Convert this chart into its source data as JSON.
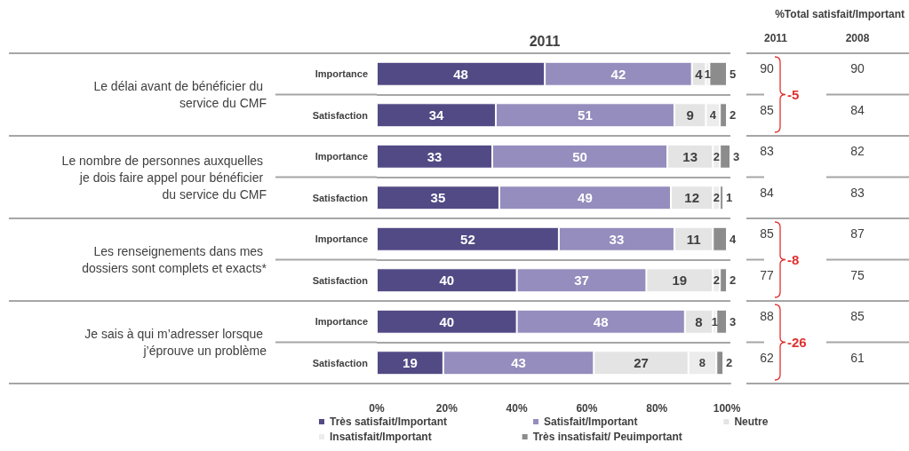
{
  "chart_data": {
    "type": "bar",
    "orientation": "horizontal",
    "stacked": true,
    "title": "2011",
    "categories": [
      "Importance",
      "Satisfaction",
      "Importance",
      "Satisfaction",
      "Importance",
      "Satisfaction",
      "Importance",
      "Satisfaction"
    ],
    "series": [
      {
        "name": "Très satisfait/Important",
        "color": "#524a85",
        "values": [
          48,
          34,
          33,
          35,
          52,
          40,
          40,
          19
        ]
      },
      {
        "name": "Satisfait/Important",
        "color": "#948dbd",
        "values": [
          42,
          51,
          50,
          49,
          33,
          37,
          48,
          43
        ]
      },
      {
        "name": "Neutre",
        "color": "#e4e4e4",
        "values": [
          4,
          9,
          13,
          12,
          11,
          19,
          8,
          27
        ]
      },
      {
        "name": "Insatisfait/Important",
        "color": "#ececec",
        "values": [
          1,
          4,
          2,
          2,
          null,
          2,
          1,
          8
        ]
      },
      {
        "name": "Très insatisfait/ Peuimportant",
        "color": "#8c8c8c",
        "values": [
          5,
          2,
          3,
          1,
          4,
          2,
          3,
          2
        ]
      }
    ],
    "xlim": [
      0,
      101
    ],
    "xticks": [
      {
        "value": 0,
        "label": "0%"
      },
      {
        "value": 20,
        "label": "20%"
      },
      {
        "value": 40,
        "label": "40%"
      },
      {
        "value": 60,
        "label": "60%"
      },
      {
        "value": 80,
        "label": "80%"
      },
      {
        "value": 100,
        "label": "100%"
      }
    ],
    "data_labels": true,
    "legend": "bottom",
    "grid": "y",
    "annotations": [
      "Le délai avant de bénéficier du service du CMF",
      "Le nombre de personnes auxquelles je dois faire appel pour bénéficier du service du CMF",
      "Les renseignements dans mes dossiers sont complets et exacts*",
      "Je sais à qui m’adresser lorsque j’éprouve un problème",
      "%Total satisfait/Important",
      "2011",
      "2008",
      "90",
      "90",
      "85",
      "84",
      "83",
      "82",
      "84",
      "83",
      "85",
      "87",
      "77",
      "75",
      "88",
      "85",
      "62",
      "61",
      "-5",
      "-8",
      "-26"
    ]
  }
}
